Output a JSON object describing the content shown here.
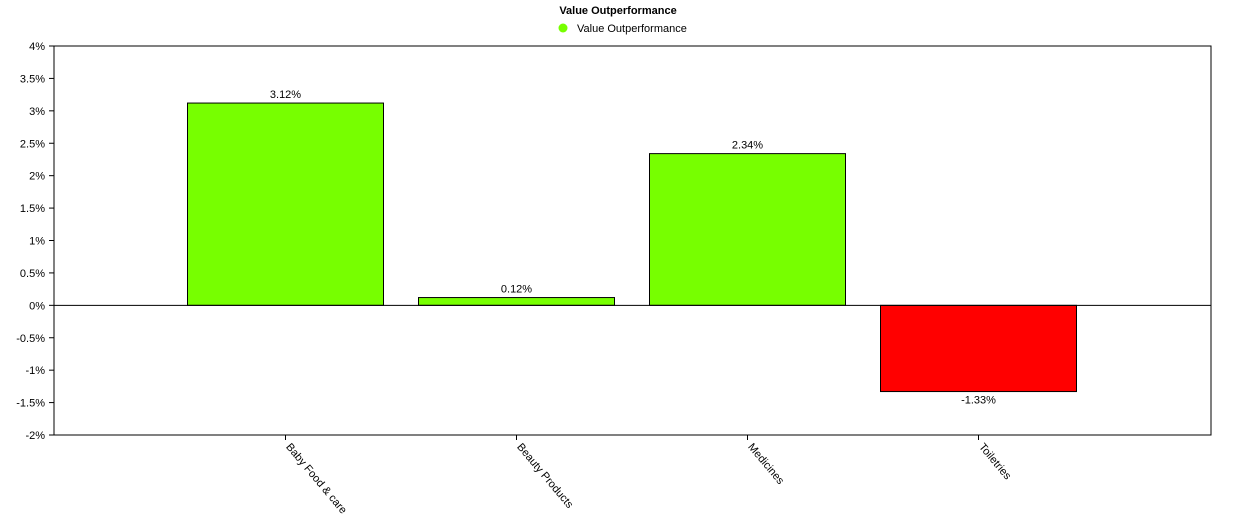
{
  "chart_data": {
    "type": "bar",
    "title": "Value Outperformance",
    "legend": {
      "placement": "top-center",
      "entries": [
        {
          "name": "Value Outperformance",
          "color": "#77ff00"
        }
      ]
    },
    "categories": [
      "Baby Food & care",
      "Beauty Products",
      "Medicines",
      "Toiletries"
    ],
    "series": [
      {
        "name": "Value Outperformance",
        "values": [
          3.12,
          0.12,
          2.34,
          -1.33
        ],
        "value_labels": [
          "3.12%",
          "0.12%",
          "2.34%",
          "-1.33%"
        ]
      }
    ],
    "ylim": [
      -2,
      4
    ],
    "yticks": [
      4,
      3.5,
      3,
      2.5,
      2,
      1.5,
      1,
      0.5,
      0,
      -0.5,
      -1,
      -1.5,
      -2
    ],
    "ytick_labels": [
      "4%",
      "3.5%",
      "3%",
      "2.5%",
      "2%",
      "1.5%",
      "1%",
      "0.5%",
      "0%",
      "-0.5%",
      "-1%",
      "-1.5%",
      "-2%"
    ],
    "xlabel": "",
    "ylabel": "",
    "grid": false,
    "colors": {
      "positive": "#77ff00",
      "negative": "#ff0000",
      "bar_stroke": "#000000"
    }
  }
}
